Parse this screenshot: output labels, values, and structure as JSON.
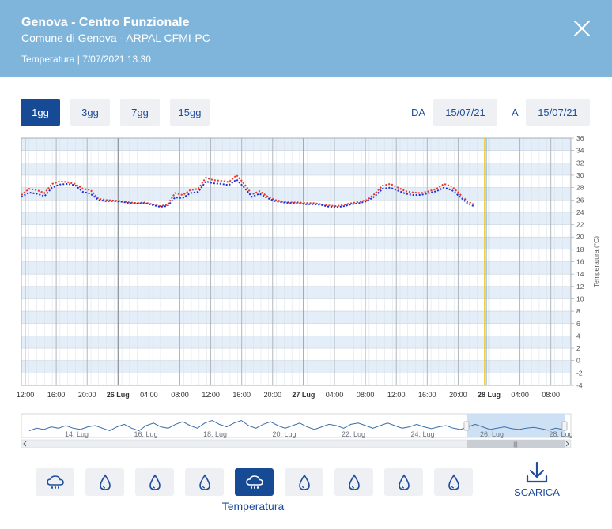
{
  "header": {
    "title": "Genova - Centro Funzionale",
    "subtitle": "Comune di Genova - ARPAL CFMI-PC",
    "info": "Temperatura | 7/07/2021 13.30"
  },
  "range_buttons": [
    {
      "label": "1gg",
      "active": true
    },
    {
      "label": "3gg",
      "active": false
    },
    {
      "label": "7gg",
      "active": false
    },
    {
      "label": "15gg",
      "active": false
    }
  ],
  "date_range": {
    "from_label": "DA",
    "from_value": "15/07/21",
    "to_label": "A",
    "to_value": "15/07/21"
  },
  "variables": {
    "active_label": "Temperatura",
    "icons": [
      "rain-cloud-icon",
      "drop-icon",
      "drop-icon",
      "drop-icon",
      "rain-cloud-icon",
      "drop-icon",
      "drop-icon",
      "drop-icon",
      "drop-icon"
    ],
    "active_index": 4
  },
  "download": {
    "label": "SCARICA"
  },
  "colors": {
    "header": "#7fb5db",
    "accent": "#174a94",
    "series_red": "#e8352b",
    "series_blue": "#1d2fd6",
    "now_line": "#f2c832"
  },
  "chart_data": {
    "type": "line",
    "y_axis": {
      "label": "Temperatura (°C)",
      "min": -4,
      "max": 36,
      "step": 2,
      "position": "right",
      "ticks": [
        "36",
        "34",
        "32",
        "30",
        "28",
        "26",
        "24",
        "22",
        "20",
        "18",
        "16",
        "14",
        "12",
        "10",
        "8",
        "6",
        "4",
        "2",
        "0",
        "-2",
        "-4"
      ]
    },
    "x_axis": {
      "ticks": [
        {
          "label": "12:00",
          "bold": false
        },
        {
          "label": "16:00",
          "bold": false
        },
        {
          "label": "20:00",
          "bold": false
        },
        {
          "label": "26 Lug",
          "bold": true
        },
        {
          "label": "04:00",
          "bold": false
        },
        {
          "label": "08:00",
          "bold": false
        },
        {
          "label": "12:00",
          "bold": false
        },
        {
          "label": "16:00",
          "bold": false
        },
        {
          "label": "20:00",
          "bold": false
        },
        {
          "label": "27 Lug",
          "bold": true
        },
        {
          "label": "04:00",
          "bold": false
        },
        {
          "label": "08:00",
          "bold": false
        },
        {
          "label": "12:00",
          "bold": false
        },
        {
          "label": "16:00",
          "bold": false
        },
        {
          "label": "20:00",
          "bold": false
        },
        {
          "label": "28 Lug",
          "bold": true
        },
        {
          "label": "04:00",
          "bold": false
        },
        {
          "label": "08:00",
          "bold": false
        }
      ]
    },
    "grid": true,
    "series": [
      {
        "color": "#e8352b",
        "x": [
          0,
          1,
          2,
          3,
          4,
          5,
          6,
          7,
          8,
          9,
          10,
          11,
          12,
          13,
          14,
          15,
          16,
          17,
          18,
          19,
          20,
          21,
          22,
          23,
          24,
          25,
          26,
          27,
          28,
          29,
          30,
          31,
          32,
          33,
          34,
          35,
          36,
          37,
          38,
          39,
          40,
          41,
          42,
          43,
          44,
          45,
          46,
          47,
          48,
          49,
          50,
          51,
          52,
          53,
          54,
          55,
          56,
          57,
          58,
          59
        ],
        "y": [
          26.8,
          27.8,
          27.6,
          27.1,
          28.6,
          29.0,
          28.9,
          28.6,
          27.8,
          27.6,
          26.2,
          26.0,
          25.9,
          25.8,
          25.6,
          25.5,
          25.6,
          25.3,
          25.0,
          25.2,
          27.1,
          26.8,
          27.6,
          27.8,
          29.6,
          29.2,
          29.1,
          28.9,
          30.0,
          28.6,
          26.9,
          27.4,
          26.6,
          26.0,
          25.7,
          25.6,
          25.6,
          25.5,
          25.5,
          25.3,
          25.1,
          25.0,
          25.2,
          25.5,
          25.7,
          26.0,
          27.0,
          28.3,
          28.6,
          28.0,
          27.4,
          27.2,
          27.1,
          27.4,
          27.8,
          28.6,
          28.2,
          27.0,
          25.8,
          25.2
        ]
      },
      {
        "color": "#1d2fd6",
        "x": [
          0,
          1,
          2,
          3,
          4,
          5,
          6,
          7,
          8,
          9,
          10,
          11,
          12,
          13,
          14,
          15,
          16,
          17,
          18,
          19,
          20,
          21,
          22,
          23,
          24,
          25,
          26,
          27,
          28,
          29,
          30,
          31,
          32,
          33,
          34,
          35,
          36,
          37,
          38,
          39,
          40,
          41,
          42,
          43,
          44,
          45,
          46,
          47,
          48,
          49,
          50,
          51,
          52,
          53,
          54,
          55,
          56,
          57,
          58,
          59
        ],
        "y": [
          26.5,
          27.2,
          27.0,
          26.6,
          28.0,
          28.5,
          28.6,
          28.4,
          27.3,
          27.0,
          26.0,
          25.8,
          25.8,
          25.7,
          25.5,
          25.4,
          25.5,
          25.2,
          24.9,
          25.0,
          26.4,
          26.3,
          27.1,
          27.3,
          29.0,
          28.7,
          28.6,
          28.4,
          29.3,
          28.0,
          26.5,
          27.0,
          26.3,
          25.8,
          25.6,
          25.5,
          25.5,
          25.3,
          25.3,
          25.2,
          24.9,
          24.8,
          25.0,
          25.3,
          25.5,
          25.8,
          26.6,
          27.8,
          28.0,
          27.5,
          27.0,
          26.8,
          26.8,
          27.1,
          27.4,
          28.0,
          27.6,
          26.6,
          25.5,
          24.9
        ]
      }
    ],
    "now_marker_index": 60.3
  },
  "navigator": {
    "labels": [
      "14. Lug",
      "16. Lug",
      "18. Lug",
      "20. Lug",
      "22. Lug",
      "24. Lug",
      "26. Lug",
      "28. Lug"
    ],
    "series": [
      26,
      27,
      26.5,
      27.5,
      27,
      28,
      27,
      26.5,
      27.5,
      28,
      27,
      26,
      27.5,
      28.5,
      27,
      26,
      28,
      29,
      27.5,
      27,
      28.5,
      29.5,
      28,
      27,
      29,
      30,
      28.5,
      27.5,
      29,
      30,
      28,
      27,
      28.5,
      29.5,
      28,
      27,
      28,
      29,
      27.5,
      26.5,
      27.5,
      28.5,
      28,
      27,
      28.5,
      29,
      28,
      27,
      28,
      29,
      28,
      27,
      27.5,
      28.5,
      27.5,
      26.8,
      27.5,
      28,
      27,
      26.5,
      27.5,
      28.5,
      27.5,
      26.5,
      27,
      27.5,
      26.8,
      26.5,
      27,
      27.3,
      26.8,
      26.2,
      27,
      26.5
    ],
    "range_min": 24,
    "range_max": 32,
    "selection_fraction": [
      0.81,
      1.0
    ]
  }
}
